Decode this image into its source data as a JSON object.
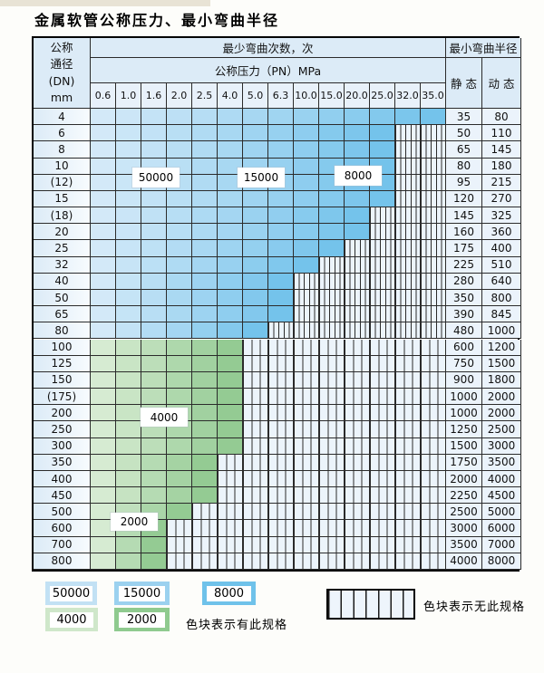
{
  "title": "金属软管公称压力、最小弯曲半径",
  "table": {
    "dn_header_lines": [
      "公称",
      "通径",
      "(DN)",
      "mm"
    ],
    "bend_cycles_header": "最少弯曲次数，次",
    "pressure_header": "公称压力（PN）MPa",
    "radius_header": "最小弯曲半径",
    "static_label": "静 态",
    "dynamic_label": "动 态",
    "pressure_columns": [
      "0.6",
      "1.0",
      "1.6",
      "2.0",
      "2.5",
      "4.0",
      "5.0",
      "6.3",
      "10.0",
      "15.0",
      "20.0",
      "25.0",
      "32.0",
      "35.0"
    ],
    "rows": [
      {
        "dn": "4",
        "max_pn": "35.0",
        "zone": "blue",
        "static": "35",
        "dynamic": "80"
      },
      {
        "dn": "6",
        "max_pn": "25.0",
        "zone": "blue",
        "static": "50",
        "dynamic": "110"
      },
      {
        "dn": "8",
        "max_pn": "25.0",
        "zone": "blue",
        "static": "65",
        "dynamic": "145"
      },
      {
        "dn": "10",
        "max_pn": "25.0",
        "zone": "blue",
        "static": "80",
        "dynamic": "180"
      },
      {
        "dn": "(12)",
        "max_pn": "25.0",
        "zone": "blue",
        "static": "95",
        "dynamic": "215"
      },
      {
        "dn": "15",
        "max_pn": "25.0",
        "zone": "blue",
        "static": "120",
        "dynamic": "270"
      },
      {
        "dn": "(18)",
        "max_pn": "20.0",
        "zone": "blue",
        "static": "145",
        "dynamic": "325"
      },
      {
        "dn": "20",
        "max_pn": "20.0",
        "zone": "blue",
        "static": "160",
        "dynamic": "360"
      },
      {
        "dn": "25",
        "max_pn": "15.0",
        "zone": "blue",
        "static": "175",
        "dynamic": "400"
      },
      {
        "dn": "32",
        "max_pn": "10.0",
        "zone": "blue",
        "static": "225",
        "dynamic": "510"
      },
      {
        "dn": "40",
        "max_pn": "6.3",
        "zone": "blue",
        "static": "280",
        "dynamic": "640"
      },
      {
        "dn": "50",
        "max_pn": "6.3",
        "zone": "blue",
        "static": "350",
        "dynamic": "800"
      },
      {
        "dn": "65",
        "max_pn": "6.3",
        "zone": "blue",
        "static": "390",
        "dynamic": "845"
      },
      {
        "dn": "80",
        "max_pn": "5.0",
        "zone": "blue",
        "static": "480",
        "dynamic": "1000"
      },
      {
        "dn": "100",
        "max_pn": "4.0",
        "zone": "green",
        "static": "600",
        "dynamic": "1200"
      },
      {
        "dn": "125",
        "max_pn": "4.0",
        "zone": "green",
        "static": "750",
        "dynamic": "1500"
      },
      {
        "dn": "150",
        "max_pn": "4.0",
        "zone": "green",
        "static": "900",
        "dynamic": "1800"
      },
      {
        "dn": "(175)",
        "max_pn": "4.0",
        "zone": "green",
        "static": "1000",
        "dynamic": "2000"
      },
      {
        "dn": "200",
        "max_pn": "4.0",
        "zone": "green",
        "static": "1000",
        "dynamic": "2000"
      },
      {
        "dn": "250",
        "max_pn": "4.0",
        "zone": "green",
        "static": "1250",
        "dynamic": "2500"
      },
      {
        "dn": "300",
        "max_pn": "4.0",
        "zone": "green",
        "static": "1500",
        "dynamic": "3000"
      },
      {
        "dn": "350",
        "max_pn": "2.5",
        "zone": "green",
        "static": "1750",
        "dynamic": "3500"
      },
      {
        "dn": "400",
        "max_pn": "2.5",
        "zone": "green",
        "static": "2000",
        "dynamic": "4000"
      },
      {
        "dn": "450",
        "max_pn": "2.5",
        "zone": "green",
        "static": "2250",
        "dynamic": "4500"
      },
      {
        "dn": "500",
        "max_pn": "2.0",
        "zone": "green",
        "static": "2500",
        "dynamic": "5000"
      },
      {
        "dn": "600",
        "max_pn": "1.6",
        "zone": "green",
        "static": "3000",
        "dynamic": "6000"
      },
      {
        "dn": "700",
        "max_pn": "1.6",
        "zone": "green",
        "static": "3500",
        "dynamic": "7000"
      },
      {
        "dn": "800",
        "max_pn": "1.6",
        "zone": "green",
        "static": "4000",
        "dynamic": "8000"
      }
    ]
  },
  "zone_labels": [
    "50000",
    "15000",
    "8000",
    "4000",
    "2000"
  ],
  "legend": {
    "items": [
      {
        "value": "50000",
        "color": "#c2e1f4"
      },
      {
        "value": "15000",
        "color": "#9bd1ef"
      },
      {
        "value": "8000",
        "color": "#6fc2ea"
      },
      {
        "value": "4000",
        "color": "#cfe7ca"
      },
      {
        "value": "2000",
        "color": "#8fca8f"
      }
    ],
    "has_spec_note": "色块表示有此规格",
    "no_spec_note": "色块表示无此规格"
  },
  "colors": {
    "blue_light": "#d3e9f8",
    "blue_deep": "#74c3eb",
    "green_light": "#d6ebd2",
    "green_deep": "#94cb93",
    "hatch_bg": "#ecf4fb",
    "grid_line": "#2b2b2b"
  }
}
